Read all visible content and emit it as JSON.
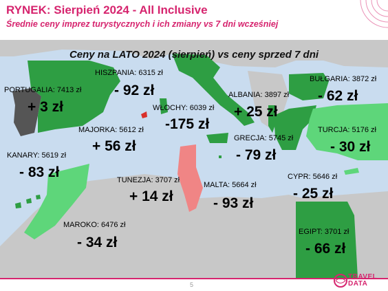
{
  "header": {
    "title": "RYNEK: Sierpień 2024 - All Inclusive",
    "subtitle": "Średnie ceny imprez turystycznych i ich zmiany vs 7 dni wcześniej"
  },
  "map": {
    "title": "Ceny na LATO 2024 (sierpień) vs ceny sprzed 7 dni",
    "regions": [
      {
        "id": "portugalia",
        "label": "PORTUGALIA: 7413 zł",
        "change": "+ 3 zł",
        "color": "#555555"
      },
      {
        "id": "hiszpania",
        "label": "HISZPANIA: 6315 zł",
        "change": "- 92 zł",
        "color": "#2e9e43"
      },
      {
        "id": "majorka",
        "label": "MAJORKA: 5612 zł",
        "change": "+ 56 zł",
        "color": "#d9302a"
      },
      {
        "id": "wlochy",
        "label": "WŁOCHY: 6039 zł",
        "change": "-175 zł",
        "color": "#2e9e43"
      },
      {
        "id": "albania",
        "label": "ALBANIA: 3897 zł",
        "change": "+ 25 zł",
        "color": "#2e9e43"
      },
      {
        "id": "bulgaria",
        "label": "BUŁGARIA: 3872 zł",
        "change": "- 62 zł",
        "color": "#2e9e43"
      },
      {
        "id": "grecja",
        "label": "GRECJA: 5745 zł",
        "change": "- 79 zł",
        "color": "#2e9e43"
      },
      {
        "id": "turcja",
        "label": "TURCJA: 5176 zł",
        "change": "- 30 zł",
        "color": "#5ed67a"
      },
      {
        "id": "kanary",
        "label": "KANARY: 5619 zł",
        "change": "- 83 zł",
        "color": "#2e9e43"
      },
      {
        "id": "tunezja",
        "label": "TUNEZJA: 3707 zł",
        "change": "+ 14 zł",
        "color": "#f08585"
      },
      {
        "id": "malta",
        "label": "MALTA: 5664 zł",
        "change": "- 93 zł",
        "color": "#2e9e43"
      },
      {
        "id": "cypr",
        "label": "CYPR: 5646 zł",
        "change": "- 25 zł",
        "color": "#5ed67a"
      },
      {
        "id": "maroko",
        "label": "MAROKO: 6476 zł",
        "change": "- 34 zł",
        "color": "#5ed67a"
      },
      {
        "id": "egipt",
        "label": "EGIPT: 3701 zł",
        "change": "- 66 zł",
        "color": "#2e9e43"
      }
    ],
    "colors": {
      "sea": "#c9dcef",
      "land": "#c8c8c8",
      "accent": "#d6246e"
    }
  },
  "footer": {
    "page_number": "5",
    "logo_top": "TRAVEL",
    "logo_bottom": "DATA"
  }
}
